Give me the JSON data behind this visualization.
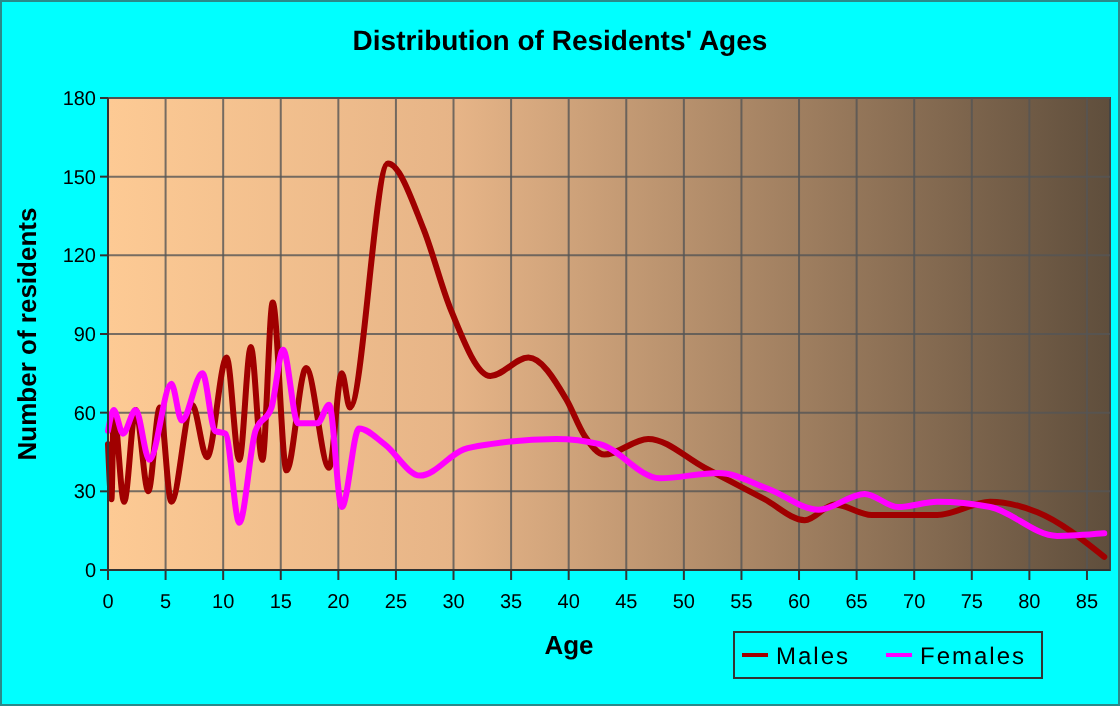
{
  "chart_data": {
    "type": "line",
    "title": "Distribution of Residents' Ages",
    "xlabel": "Age",
    "ylabel": "Number of residents",
    "xlim": [
      0,
      87
    ],
    "ylim": [
      0,
      180
    ],
    "xticks": [
      0,
      5,
      10,
      15,
      20,
      25,
      30,
      35,
      40,
      45,
      50,
      55,
      60,
      65,
      70,
      75,
      80,
      85
    ],
    "yticks": [
      0,
      30,
      60,
      90,
      120,
      150,
      180
    ],
    "grid": true,
    "legend": "bottom right",
    "line_style": "solid",
    "marker": "none",
    "series": [
      {
        "name": "Males",
        "color": "#a00000",
        "x": [
          0,
          0.3,
          0.5,
          1.4,
          2.4,
          3.5,
          4.5,
          5.5,
          7.3,
          8.6,
          10.3,
          11.4,
          12.4,
          13.4,
          14.3,
          15.5,
          17.2,
          19.2,
          20.3,
          21,
          24.3,
          27.4,
          29.7,
          33.2,
          36.5,
          39.8,
          41.4,
          43.1,
          46.9,
          51.8,
          57,
          60.5,
          63.1,
          66.3,
          72,
          76.6,
          80.7,
          86.5
        ],
        "values": [
          48,
          27,
          60,
          26,
          61,
          30,
          62,
          26,
          63,
          43,
          81,
          42,
          85,
          42,
          102,
          38,
          77,
          39,
          75,
          62,
          155,
          130,
          100,
          74,
          81,
          65,
          51,
          44,
          50,
          39,
          27,
          19,
          25,
          21,
          21,
          26,
          22,
          5
        ]
      },
      {
        "name": "Females",
        "color": "#ff00ff",
        "x": [
          0,
          0.5,
          1.3,
          2.4,
          3.6,
          5.5,
          6.4,
          8.2,
          9.3,
          10.2,
          11.4,
          12.8,
          14.2,
          15.2,
          16.5,
          18.2,
          19.2,
          20.3,
          21.8,
          24,
          27.1,
          30.9,
          33.2,
          38.9,
          42.7,
          47.9,
          53,
          57.3,
          61.7,
          65.7,
          68.6,
          72,
          76.6,
          82.4,
          86.5
        ],
        "values": [
          53,
          61,
          52,
          61,
          42,
          71,
          57,
          75,
          53,
          52,
          18,
          53,
          62,
          84,
          56,
          56,
          63,
          24,
          54,
          48,
          36,
          46,
          48,
          50,
          48,
          35,
          37,
          31,
          23,
          29,
          24,
          26,
          24,
          13,
          14
        ]
      }
    ]
  }
}
